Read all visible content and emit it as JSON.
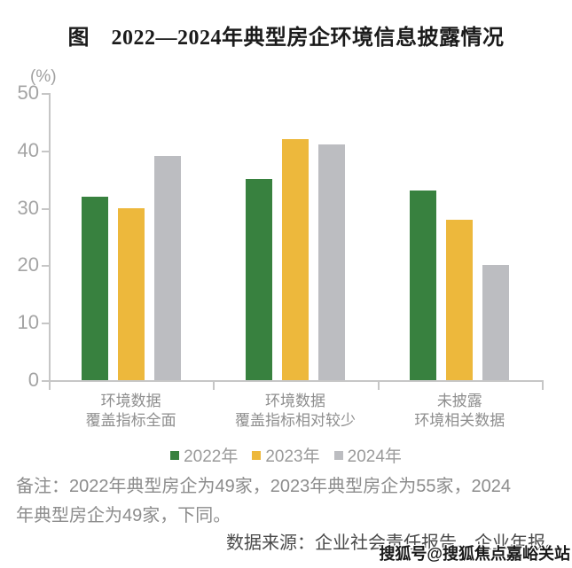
{
  "page": {
    "note_lines": [
      "备注：2022年典型房企为49家，2023年典型房企为55家，2024",
      "年典型房企为49家，下同。"
    ],
    "source": "数据来源：企业社会责任报告、企业年报。",
    "watermark": "搜狐号@搜狐焦点嘉峪关站"
  },
  "chart_data": {
    "type": "bar",
    "title": "图　2022—2024年典型房企环境信息披露情况",
    "unit_label": "(%)",
    "categories": [
      "环境数据覆盖指标全面",
      "环境数据覆盖指标相对较少",
      "未披露环境相关数据"
    ],
    "categories_lines": [
      [
        "环境数据",
        "覆盖指标全面"
      ],
      [
        "环境数据",
        "覆盖指标相对较少"
      ],
      [
        "未披露",
        "环境相关数据"
      ]
    ],
    "series": [
      {
        "name": "2022年",
        "color": "#38813F",
        "values": [
          32,
          35,
          33
        ]
      },
      {
        "name": "2023年",
        "color": "#EDB83C",
        "values": [
          30,
          42,
          28
        ]
      },
      {
        "name": "2024年",
        "color": "#BCBDC1",
        "values": [
          39,
          41,
          20
        ]
      }
    ],
    "ylim": [
      0,
      50
    ],
    "yticks": [
      0,
      10,
      20,
      30,
      40,
      50
    ],
    "ylabel": "",
    "xlabel": "",
    "grid": false,
    "legend_position": "bottom",
    "axis_color": "#c6c6c6"
  }
}
